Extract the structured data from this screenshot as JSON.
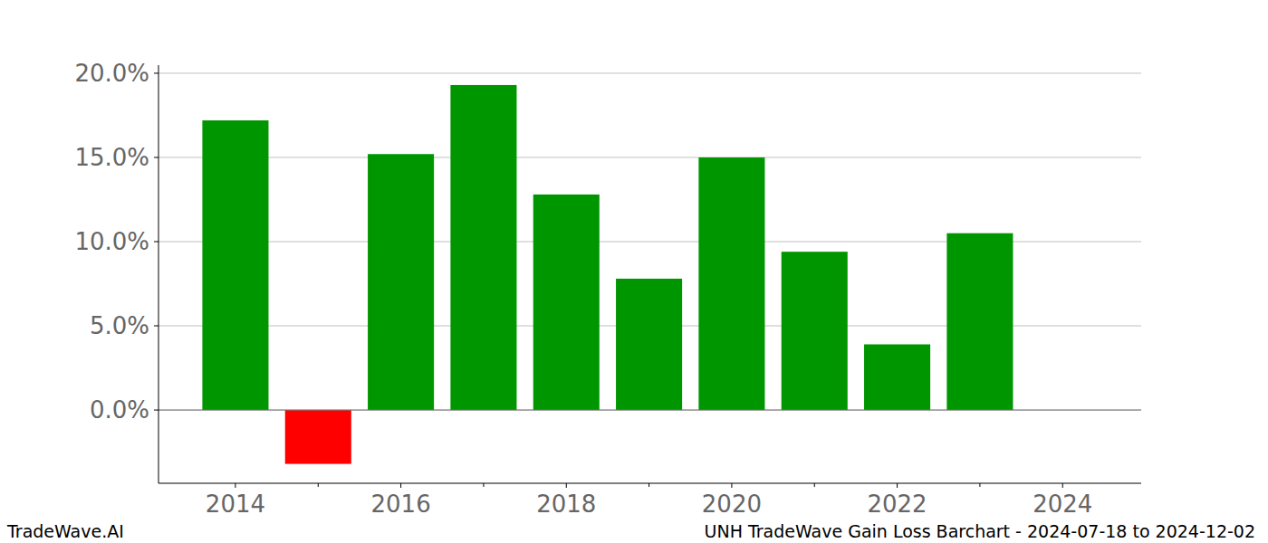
{
  "chart_data": {
    "type": "bar",
    "title": "UNH TradeWave Gain Loss Barchart - 2024-07-18 to 2024-12-02",
    "source": "TradeWave.AI",
    "x": [
      2014,
      2015,
      2016,
      2017,
      2018,
      2019,
      2020,
      2021,
      2022,
      2023
    ],
    "values": [
      17.2,
      -3.2,
      15.2,
      19.3,
      12.8,
      7.8,
      15.0,
      9.4,
      3.9,
      10.5
    ],
    "colors": [
      "#009600",
      "#ff0000",
      "#009600",
      "#009600",
      "#009600",
      "#009600",
      "#009600",
      "#009600",
      "#009600",
      "#009600"
    ],
    "xlim": [
      2013.07,
      2024.95
    ],
    "xticks": [
      2014,
      2016,
      2018,
      2020,
      2022,
      2024
    ],
    "ylim": [
      -4.35,
      20.48
    ],
    "yticks": [
      {
        "value": 0,
        "label": "0.0%"
      },
      {
        "value": 5,
        "label": "5.0%"
      },
      {
        "value": 10,
        "label": "10.0%"
      },
      {
        "value": 15,
        "label": "15.0%"
      },
      {
        "value": 20,
        "label": "20.0%"
      }
    ],
    "grid": true
  }
}
